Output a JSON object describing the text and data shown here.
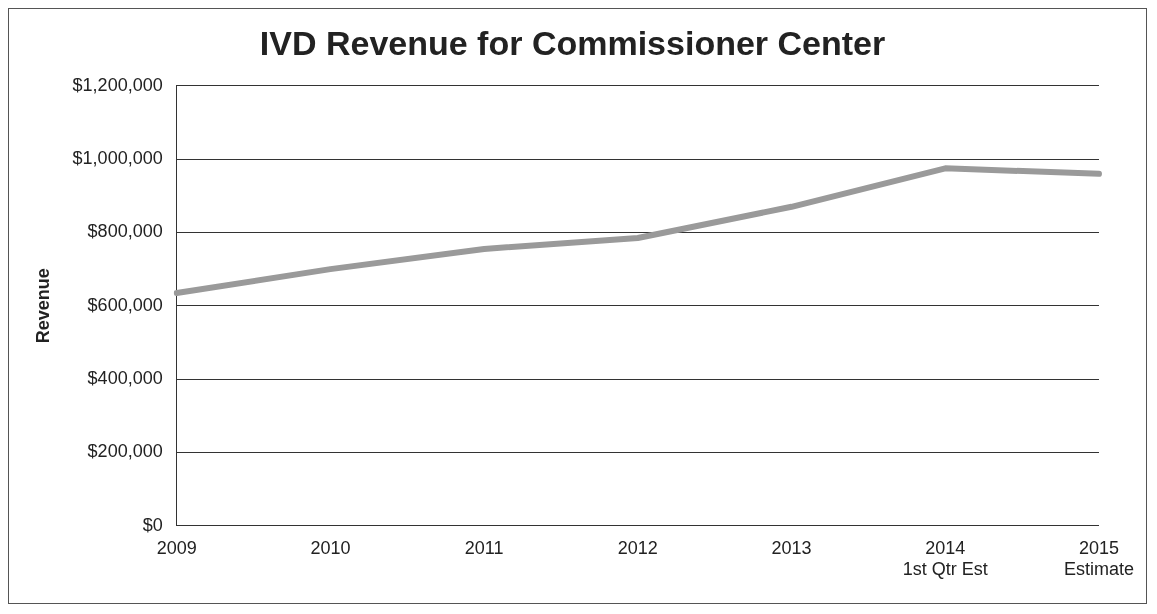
{
  "chart_data": {
    "type": "line",
    "title": "IVD Revenue for Commissioner Center",
    "ylabel": "Revenue",
    "categories": [
      "2009",
      "2010",
      "2011",
      "2012",
      "2013",
      "2014\n1st Qtr Est",
      "2015\nEstimate"
    ],
    "series": [
      {
        "color": "#9a9a9a",
        "values": [
          635000,
          700000,
          755000,
          785000,
          870000,
          975000,
          960000
        ]
      }
    ],
    "ylim": [
      0,
      1200000
    ],
    "yticks": [
      {
        "value": 0,
        "label": "$0"
      },
      {
        "value": 200000,
        "label": "$200,000"
      },
      {
        "value": 400000,
        "label": "$400,000"
      },
      {
        "value": 600000,
        "label": "$600,000"
      },
      {
        "value": 800000,
        "label": "$800,000"
      },
      {
        "value": 1000000,
        "label": "$1,000,000"
      },
      {
        "value": 1200000,
        "label": "$1,200,000"
      }
    ],
    "grid": "y",
    "legend": false,
    "marker": "none",
    "line_style": "solid"
  }
}
